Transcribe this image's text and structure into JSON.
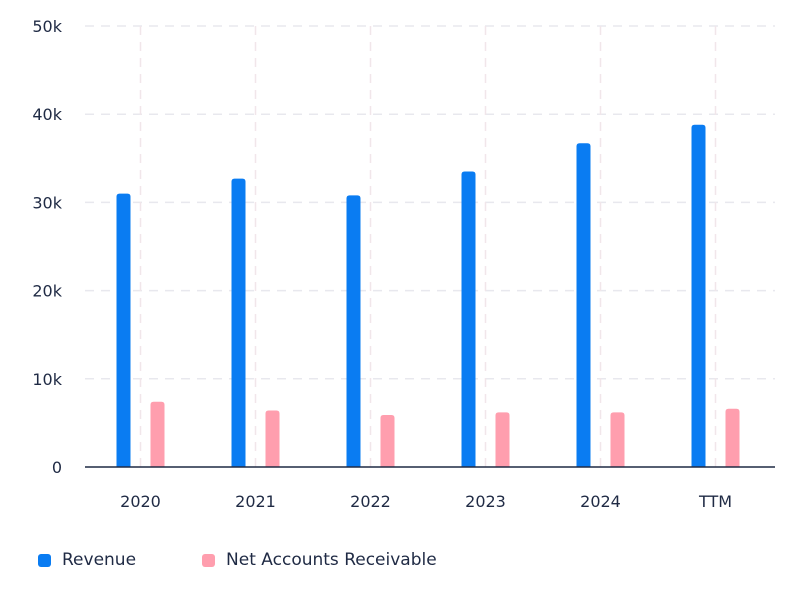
{
  "chart_data": {
    "type": "bar",
    "title": "",
    "xlabel": "",
    "ylabel": "",
    "categories": [
      "2020",
      "2021",
      "2022",
      "2023",
      "2024",
      "TTM"
    ],
    "ylim": [
      0,
      50000
    ],
    "yticks": [
      {
        "value": 0,
        "label": "0"
      },
      {
        "value": 10000,
        "label": "10k"
      },
      {
        "value": 20000,
        "label": "20k"
      },
      {
        "value": 30000,
        "label": "30k"
      },
      {
        "value": 40000,
        "label": "40k"
      },
      {
        "value": 50000,
        "label": "50k"
      }
    ],
    "grid": true,
    "legend_position": "bottom-left",
    "series": [
      {
        "name": "Revenue",
        "color": "#0a7cf2",
        "values": [
          31000,
          32700,
          30800,
          33500,
          36700,
          38800
        ]
      },
      {
        "name": "Net Accounts Receivable",
        "color": "#ff9eae",
        "values": [
          7400,
          6400,
          5900,
          6200,
          6200,
          6600
        ]
      }
    ]
  }
}
